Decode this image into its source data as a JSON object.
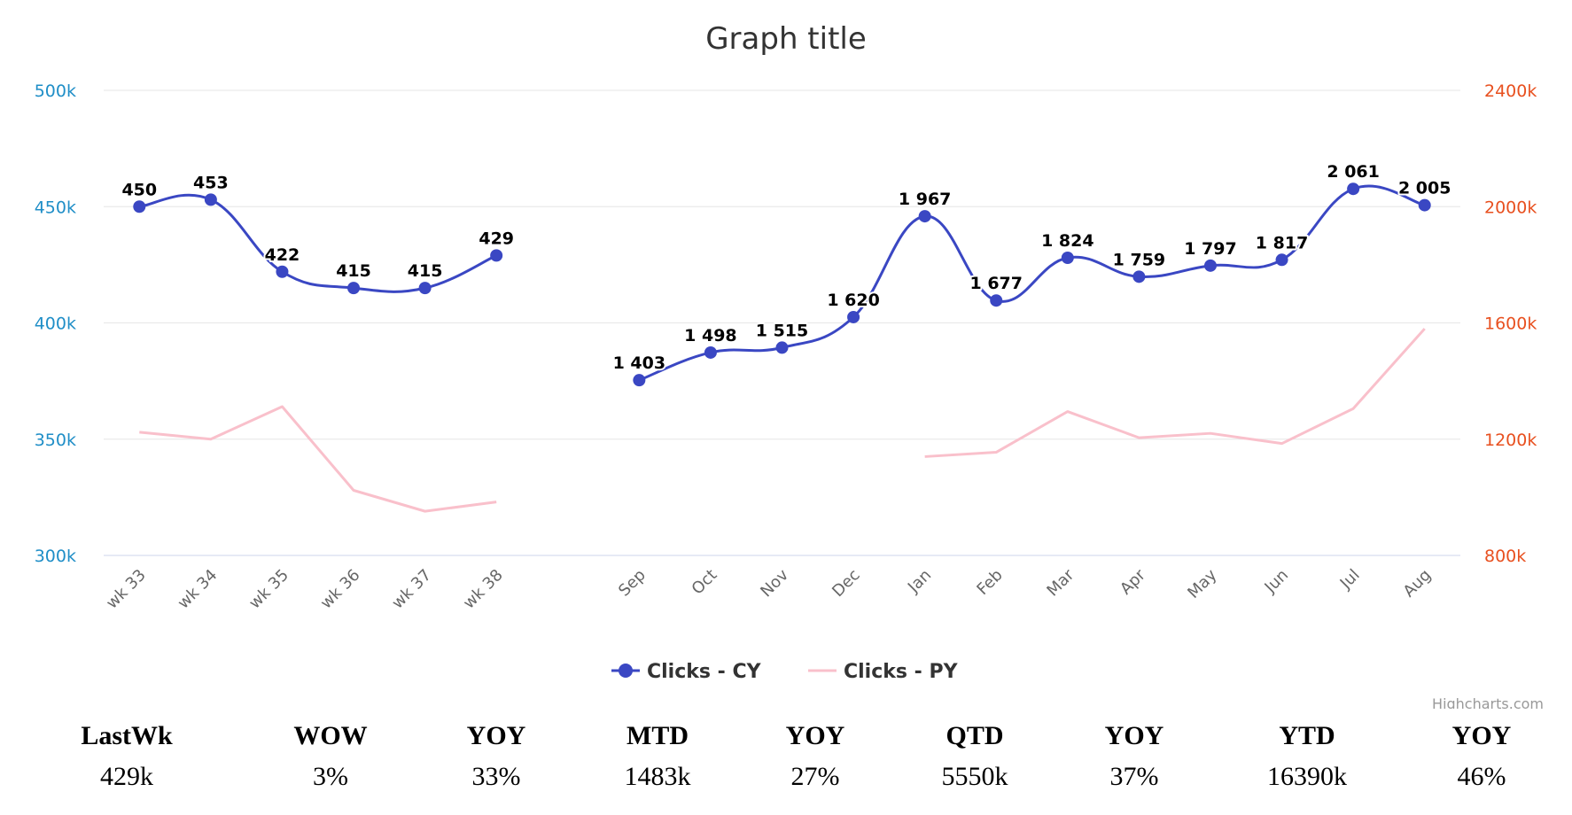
{
  "chart_data": {
    "type": "line",
    "title": "Graph title",
    "categories": [
      "wk 33",
      "wk 34",
      "wk 35",
      "wk 36",
      "wk 37",
      "wk 38",
      "",
      "Sep",
      "Oct",
      "Nov",
      "Dec",
      "Jan",
      "Feb",
      "Mar",
      "Apr",
      "May",
      "Jun",
      "Jul",
      "Aug"
    ],
    "y_left": {
      "ticks": [
        "300k",
        "350k",
        "400k",
        "450k",
        "500k"
      ],
      "range": [
        300,
        500
      ],
      "color": "#1f8ec7"
    },
    "y_right": {
      "ticks": [
        "800k",
        "1200k",
        "1600k",
        "2000k",
        "2400k"
      ],
      "range": [
        800,
        2400
      ],
      "color": "#e8501f"
    },
    "grid": true,
    "legend_position": "bottom-center",
    "series": [
      {
        "name": "Clicks - CY",
        "color": "#3a47c3",
        "marker": true,
        "segments": [
          {
            "axis": "left",
            "start": 0,
            "values": [
              450,
              453,
              422,
              415,
              415,
              429
            ],
            "labels": [
              "450",
              "453",
              "422",
              "415",
              "415",
              "429"
            ]
          },
          {
            "axis": "right",
            "start": 7,
            "values": [
              1403,
              1498,
              1515,
              1620,
              1967,
              1677,
              1824,
              1759,
              1797,
              1817,
              2061,
              2005
            ],
            "labels": [
              "1 403",
              "1 498",
              "1 515",
              "1 620",
              "1 967",
              "1 677",
              "1 824",
              "1 759",
              "1 797",
              "1 817",
              "2 061",
              "2 005"
            ]
          }
        ]
      },
      {
        "name": "Clicks - PY",
        "color": "#f9c0cb",
        "marker": false,
        "segments": [
          {
            "axis": "left",
            "start": 0,
            "values": [
              353,
              350,
              364,
              328,
              319,
              323
            ]
          },
          {
            "axis": "right",
            "start": 11,
            "values": [
              1140,
              1155,
              1295,
              1205,
              1220,
              1185,
              1305,
              1580
            ]
          }
        ]
      }
    ],
    "credits": "Highcharts.com"
  },
  "kpis": [
    {
      "label": "LastWk",
      "value": "429k"
    },
    {
      "label": "WOW",
      "value": "3%"
    },
    {
      "label": "YOY",
      "value": "33%"
    },
    {
      "label": "MTD",
      "value": "1483k"
    },
    {
      "label": "YOY",
      "value": "27%"
    },
    {
      "label": "QTD",
      "value": "5550k"
    },
    {
      "label": "YOY",
      "value": "37%"
    },
    {
      "label": "YTD",
      "value": "16390k"
    },
    {
      "label": "YOY",
      "value": "46%"
    }
  ]
}
